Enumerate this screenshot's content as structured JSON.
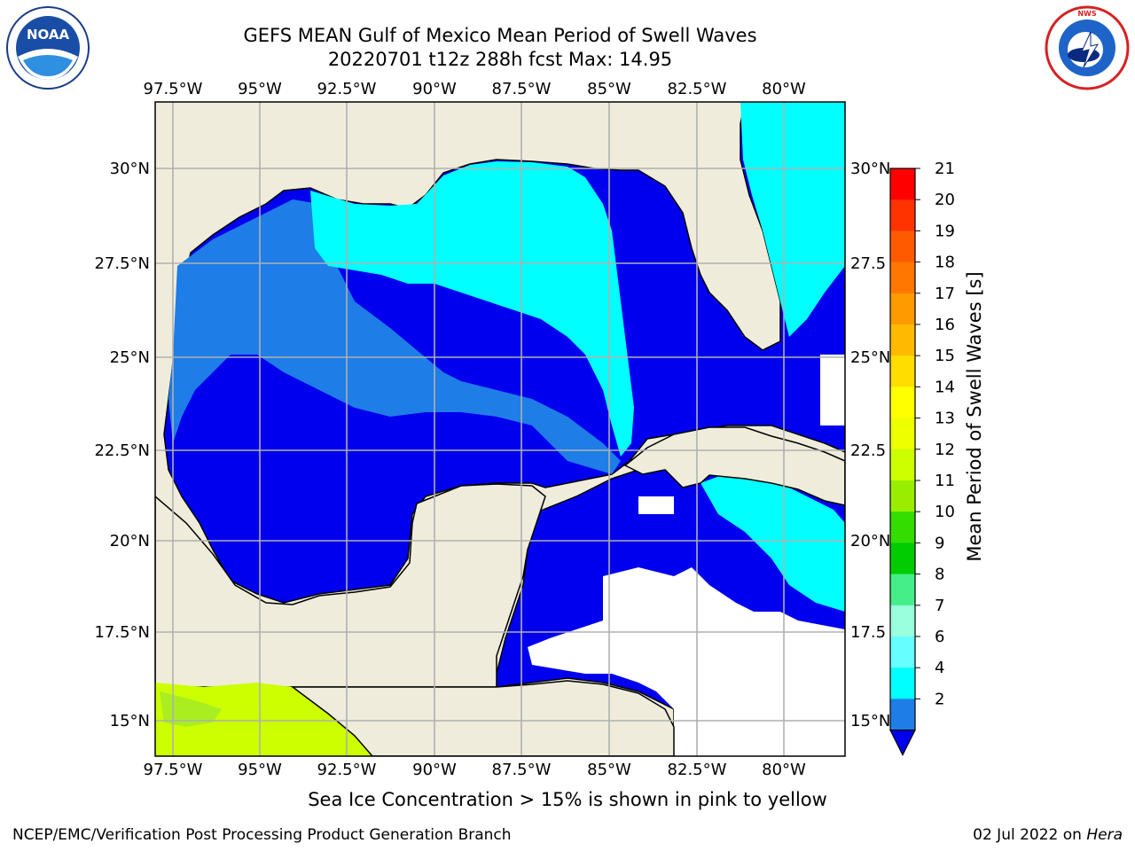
{
  "header": {
    "title_line1": "GEFS MEAN Gulf of Mexico Mean Period of Swell Waves",
    "title_line2": "20220701 t12z 288h fcst   Max: 14.95"
  },
  "logos": {
    "left": {
      "text": "NOAA",
      "ring_text": "NATIONAL OCEANIC AND ATMOSPHERIC ADMINISTRATION · U.S. DEPARTMENT OF COMMERCE"
    },
    "right": {
      "ring_text": "NATIONAL WEATHER SERVICE"
    }
  },
  "map": {
    "lon_labels": [
      "97.5°W",
      "95°W",
      "92.5°W",
      "90°W",
      "87.5°W",
      "85°W",
      "82.5°W",
      "80°W"
    ],
    "lat_labels_left": [
      "30°N",
      "27.5°N",
      "25°N",
      "22.5°N",
      "20°N",
      "17.5°N",
      "15°N"
    ],
    "lat_labels_right": [
      "30°N",
      "27.5",
      "25°N",
      "22.5",
      "20°N",
      "17.5",
      "15°N"
    ],
    "colors": {
      "land": "#efecdc",
      "ocean_low": "#0000ee",
      "ocean_mid": "#1e7de6",
      "ocean_high": "#00ffff",
      "no_data": "#ffffff",
      "sea_ice": "#ccff00"
    }
  },
  "colorbar": {
    "label": "Mean Period of Swell Waves [s]",
    "ticks": [
      "21",
      "20",
      "19",
      "18",
      "17",
      "16",
      "15",
      "14",
      "13",
      "12",
      "11",
      "10",
      "9",
      "8",
      "7",
      "6",
      "4",
      "2"
    ],
    "colors": [
      "#ff0000",
      "#ff3300",
      "#ff5a00",
      "#ff7700",
      "#ff9a00",
      "#ffbb00",
      "#ffdd00",
      "#ffff00",
      "#eeff00",
      "#ccff00",
      "#99ee00",
      "#33dd00",
      "#00cc00",
      "#44ee88",
      "#99ffdd",
      "#66ffff",
      "#00ffff",
      "#1e7de6"
    ],
    "underflow_color": "#0000ee"
  },
  "note": "Sea Ice Concentration > 15% is shown in pink to yellow",
  "footer": {
    "left": "NCEP/EMC/Verification Post Processing Product Generation Branch",
    "date": "02 Jul 2022 on ",
    "host": "Hera"
  }
}
